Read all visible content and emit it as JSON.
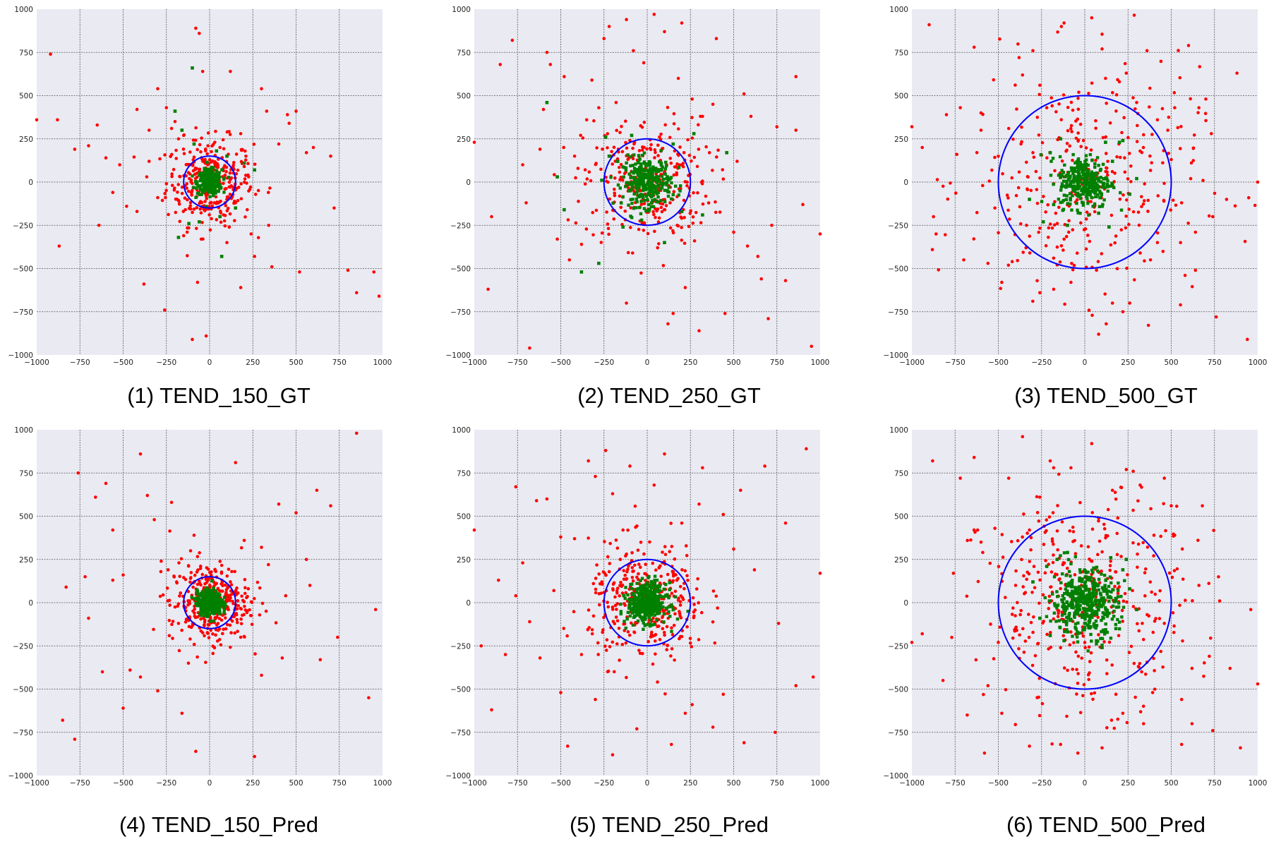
{
  "chart_data": [
    {
      "type": "scatter",
      "caption": "(1) TEND_150_GT",
      "circle_radius": 150,
      "xlim": [
        -1000,
        1000
      ],
      "ylim": [
        -1000,
        1000
      ],
      "xticks": [
        -1000,
        -750,
        -500,
        -250,
        0,
        250,
        500,
        750,
        1000
      ],
      "yticks": [
        -1000,
        -750,
        -500,
        -250,
        0,
        250,
        500,
        750,
        1000
      ],
      "grid": true,
      "series": [
        {
          "color": "#ff0000",
          "marker": "dot",
          "x": [
            -1000,
            -920,
            -870,
            -780,
            -700,
            -650,
            -600,
            -560,
            -520,
            -480,
            -420,
            -380,
            -350,
            -300,
            -260,
            -250,
            -220,
            -200,
            -180,
            -150,
            -100,
            -80,
            -60,
            -40,
            30,
            60,
            80,
            120,
            150,
            180,
            210,
            240,
            260,
            300,
            330,
            360,
            400,
            450,
            500,
            520,
            560,
            600,
            700,
            720,
            800,
            850,
            950,
            980,
            -880,
            -640,
            -420,
            -300,
            -150,
            100,
            200,
            340,
            -70,
            -20,
            90,
            180,
            -350,
            460
          ],
          "y": [
            360,
            740,
            -370,
            190,
            210,
            330,
            140,
            -60,
            100,
            -140,
            420,
            -590,
            300,
            540,
            -740,
            430,
            310,
            350,
            250,
            270,
            -910,
            890,
            860,
            640,
            230,
            200,
            -190,
            640,
            -120,
            280,
            150,
            -300,
            -430,
            540,
            410,
            -490,
            220,
            390,
            410,
            -520,
            170,
            200,
            150,
            -150,
            -510,
            -640,
            -520,
            -660,
            360,
            -250,
            -170,
            -90,
            -310,
            -350,
            90,
            -60,
            -580,
            -890,
            -120,
            -610,
            120,
            340
          ]
        },
        {
          "color": "#008000",
          "marker": "square",
          "x": [
            -200,
            -160,
            -100,
            -60,
            70,
            150,
            200,
            260,
            -180,
            -120,
            60,
            100,
            -90,
            40
          ],
          "y": [
            410,
            300,
            660,
            -230,
            -430,
            -150,
            110,
            70,
            -320,
            -240,
            -200,
            150,
            220,
            180
          ]
        }
      ]
    },
    {
      "type": "scatter",
      "caption": "(2) TEND_250_GT",
      "circle_radius": 250,
      "xlim": [
        -1000,
        1000
      ],
      "ylim": [
        -1000,
        1000
      ],
      "xticks": [
        -1000,
        -750,
        -500,
        -250,
        0,
        250,
        500,
        750,
        1000
      ],
      "yticks": [
        -1000,
        -750,
        -500,
        -250,
        0,
        250,
        500,
        750,
        1000
      ],
      "grid": true,
      "series": [
        {
          "color": "#ff0000",
          "marker": "dot",
          "x": [
            -1000,
            -920,
            -850,
            -780,
            -720,
            -680,
            -620,
            -580,
            -520,
            -480,
            -420,
            -380,
            -320,
            -280,
            -220,
            -180,
            -120,
            -80,
            -20,
            40,
            100,
            150,
            200,
            260,
            300,
            360,
            400,
            450,
            500,
            560,
            600,
            660,
            700,
            750,
            800,
            860,
            900,
            950,
            1000,
            -700,
            -600,
            -450,
            -350,
            120,
            220,
            380,
            520,
            640,
            -900,
            -560,
            320,
            720,
            -250,
            -120,
            60,
            180,
            580,
            860
          ],
          "y": [
            230,
            -620,
            680,
            820,
            100,
            -960,
            190,
            750,
            -330,
            610,
            150,
            -360,
            590,
            430,
            900,
            460,
            940,
            760,
            690,
            970,
            870,
            -760,
            920,
            480,
            -860,
            170,
            830,
            -760,
            -290,
            510,
            380,
            -560,
            -790,
            320,
            -570,
            610,
            -130,
            -950,
            -300,
            -120,
            420,
            -450,
            360,
            -820,
            -610,
            450,
            120,
            -430,
            -200,
            680,
            380,
            -250,
            830,
            -700,
            -380,
            600,
            -370,
            300
          ]
        },
        {
          "color": "#008000",
          "marker": "square",
          "x": [
            -580,
            -520,
            -380,
            -280,
            -240,
            -170,
            -140,
            -90,
            100,
            200,
            270,
            320,
            460,
            -480,
            -220,
            150
          ],
          "y": [
            460,
            30,
            -520,
            -470,
            260,
            120,
            -260,
            270,
            -350,
            -170,
            280,
            -190,
            170,
            -160,
            150,
            220
          ]
        }
      ]
    },
    {
      "type": "scatter",
      "caption": "(3) TEND_500_GT",
      "circle_radius": 500,
      "xlim": [
        -1000,
        1000
      ],
      "ylim": [
        -1000,
        1000
      ],
      "xticks": [
        -1000,
        -750,
        -500,
        -250,
        0,
        250,
        500,
        750,
        1000
      ],
      "yticks": [
        -1000,
        -750,
        -500,
        -250,
        0,
        250,
        500,
        750,
        1000
      ],
      "grid": true,
      "series": [
        {
          "color": "#ff0000",
          "marker": "dot",
          "x": [
            -1000,
            -940,
            -900,
            -860,
            -800,
            -740,
            -700,
            -640,
            -600,
            -560,
            -520,
            -480,
            -440,
            -380,
            -340,
            -300,
            -260,
            -220,
            -180,
            -120,
            -80,
            40,
            80,
            120,
            160,
            200,
            260,
            300,
            360,
            420,
            480,
            520,
            560,
            600,
            640,
            700,
            760,
            820,
            880,
            940,
            1000,
            -600,
            -500,
            -420,
            420,
            500,
            640,
            740,
            -300,
            -180,
            240,
            380,
            220,
            -260,
            100,
            580,
            -720,
            660
          ],
          "y": [
            320,
            200,
            910,
            -300,
            390,
            160,
            -450,
            780,
            300,
            -470,
            -150,
            -580,
            310,
            720,
            -380,
            170,
            -640,
            430,
            -440,
            920,
            -580,
            950,
            -880,
            600,
            -700,
            580,
            -700,
            460,
            760,
            360,
            300,
            430,
            -120,
            790,
            -290,
            480,
            -780,
            -100,
            630,
            -910,
            0,
            400,
            150,
            -460,
            -350,
            130,
            -510,
            -200,
            760,
            -620,
            630,
            -450,
            -750,
            560,
            770,
            -540,
            430,
            430
          ]
        },
        {
          "color": "#008000",
          "marker": "square",
          "x": [
            -320,
            -240,
            -140,
            -100,
            80,
            120,
            160,
            200,
            260,
            300,
            -200,
            220,
            -180,
            140
          ],
          "y": [
            -100,
            -230,
            250,
            -250,
            -180,
            230,
            120,
            230,
            -70,
            20,
            170,
            240,
            -130,
            -260
          ]
        }
      ]
    },
    {
      "type": "scatter",
      "caption": "(4) TEND_150_Pred",
      "circle_radius": 150,
      "xlim": [
        -1000,
        1000
      ],
      "ylim": [
        -1000,
        1000
      ],
      "xticks": [
        -1000,
        -750,
        -500,
        -250,
        0,
        250,
        500,
        750,
        1000
      ],
      "yticks": [
        -1000,
        -750,
        -500,
        -250,
        0,
        250,
        500,
        750,
        1000
      ],
      "grid": true,
      "series": [
        {
          "color": "#ff0000",
          "marker": "dot",
          "x": [
            -850,
            -830,
            -780,
            -760,
            -720,
            -660,
            -620,
            -560,
            -500,
            -460,
            -400,
            -360,
            -320,
            -280,
            -220,
            -180,
            -160,
            -110,
            -80,
            150,
            200,
            260,
            300,
            340,
            400,
            440,
            500,
            560,
            620,
            640,
            700,
            850,
            920,
            960,
            -600,
            -400,
            -240,
            -90,
            180,
            420,
            -700,
            -560,
            -300,
            300,
            -500,
            580,
            740
          ],
          "y": [
            -680,
            90,
            -790,
            750,
            150,
            610,
            -400,
            130,
            160,
            -390,
            860,
            620,
            480,
            240,
            580,
            -120,
            -640,
            300,
            -860,
            810,
            360,
            -890,
            -420,
            220,
            570,
            40,
            520,
            250,
            650,
            -330,
            560,
            980,
            -550,
            -40,
            690,
            -430,
            190,
            390,
            -200,
            -320,
            -90,
            420,
            -510,
            320,
            -610,
            100,
            -200
          ]
        },
        {
          "color": "#008000",
          "marker": "square",
          "x": [],
          "y": []
        }
      ]
    },
    {
      "type": "scatter",
      "caption": "(5) TEND_250_Pred",
      "circle_radius": 250,
      "xlim": [
        -1000,
        1000
      ],
      "ylim": [
        -1000,
        1000
      ],
      "xticks": [
        -1000,
        -750,
        -500,
        -250,
        0,
        250,
        500,
        750,
        1000
      ],
      "yticks": [
        -1000,
        -750,
        -500,
        -250,
        0,
        250,
        500,
        750,
        1000
      ],
      "grid": true,
      "series": [
        {
          "color": "#ff0000",
          "marker": "dot",
          "x": [
            -1000,
            -960,
            -900,
            -860,
            -820,
            -760,
            -720,
            -680,
            -640,
            -580,
            -540,
            -500,
            -460,
            -420,
            -380,
            -340,
            -300,
            -240,
            -200,
            -140,
            -100,
            -60,
            40,
            100,
            140,
            200,
            260,
            320,
            380,
            440,
            500,
            560,
            620,
            680,
            740,
            800,
            860,
            920,
            960,
            1000,
            -620,
            -500,
            440,
            540,
            -300,
            300,
            -760,
            760,
            -200,
            220
          ],
          "y": [
            420,
            -250,
            -620,
            130,
            -300,
            670,
            230,
            -110,
            590,
            600,
            70,
            -520,
            -830,
            370,
            -300,
            820,
            730,
            880,
            -880,
            420,
            790,
            -730,
            680,
            860,
            -820,
            460,
            -590,
            780,
            -720,
            510,
            310,
            -810,
            190,
            790,
            -750,
            460,
            -480,
            890,
            -430,
            170,
            -320,
            380,
            -530,
            650,
            -560,
            570,
            40,
            -120,
            630,
            -640
          ]
        },
        {
          "color": "#008000",
          "marker": "square",
          "x": [],
          "y": []
        }
      ]
    },
    {
      "type": "scatter",
      "caption": "(6) TEND_500_Pred",
      "circle_radius": 500,
      "xlim": [
        -1000,
        1000
      ],
      "ylim": [
        -1000,
        1000
      ],
      "xticks": [
        -1000,
        -750,
        -500,
        -250,
        0,
        250,
        500,
        750,
        1000
      ],
      "yticks": [
        -1000,
        -750,
        -500,
        -250,
        0,
        250,
        500,
        750,
        1000
      ],
      "grid": true,
      "series": [
        {
          "color": "#ff0000",
          "marker": "dot",
          "x": [
            -1000,
            -940,
            -880,
            -820,
            -760,
            -720,
            -680,
            -640,
            -600,
            -560,
            -520,
            -480,
            -440,
            -400,
            -360,
            -320,
            -260,
            -200,
            -140,
            -80,
            -40,
            40,
            100,
            160,
            220,
            280,
            340,
            400,
            460,
            520,
            560,
            620,
            680,
            740,
            780,
            840,
            900,
            960,
            1000,
            -580,
            -460,
            460,
            560,
            660,
            720,
            -620,
            -500,
            500,
            620,
            -320,
            -180,
            240,
            320,
            180
          ],
          "y": [
            -230,
            -180,
            820,
            -450,
            170,
            720,
            -650,
            840,
            350,
            -480,
            430,
            -640,
            720,
            100,
            960,
            -830,
            610,
            820,
            -820,
            780,
            -870,
            920,
            -840,
            650,
            -640,
            760,
            -700,
            390,
            720,
            390,
            -560,
            -380,
            560,
            -740,
            10,
            -380,
            -840,
            -40,
            -470,
            -870,
            30,
            -120,
            -820,
            100,
            -310,
            420,
            -230,
            560,
            -700,
            420,
            780,
            770,
            680,
            -530
          ]
        },
        {
          "color": "#008000",
          "marker": "square",
          "x": [
            -300,
            -260,
            -220,
            -160,
            -120,
            180,
            220,
            260,
            300,
            -200,
            150,
            -100,
            100,
            240
          ],
          "y": [
            120,
            -90,
            210,
            250,
            -220,
            -150,
            190,
            80,
            -40,
            -190,
            260,
            290,
            -260,
            250
          ]
        }
      ]
    }
  ]
}
